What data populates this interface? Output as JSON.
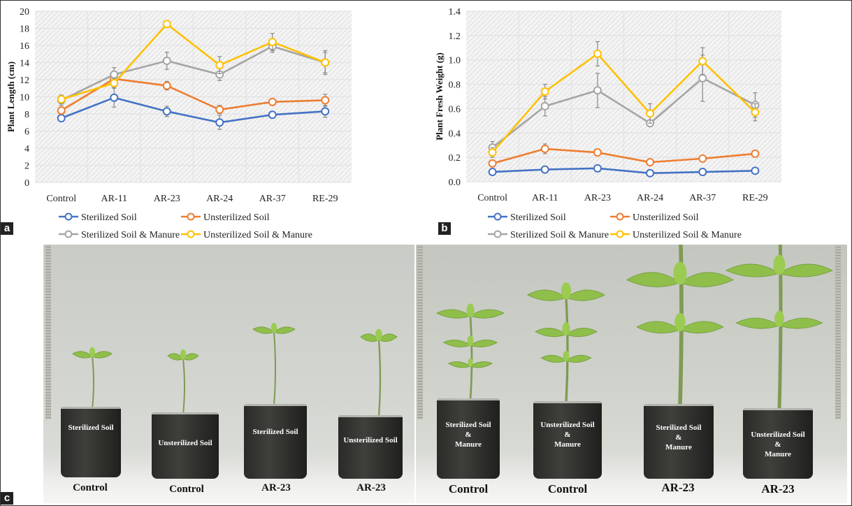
{
  "panel_labels": {
    "a": "a",
    "b": "b",
    "c": "c"
  },
  "chart_data": [
    {
      "type": "line",
      "id": "a",
      "title": "",
      "xlabel": "",
      "ylabel": "Plant Length (cm)",
      "ylim": [
        0,
        20
      ],
      "yticks": [
        "0",
        "2",
        "4",
        "6",
        "8",
        "10",
        "12",
        "14",
        "16",
        "18",
        "20"
      ],
      "ytick_values": [
        0,
        2,
        4,
        6,
        8,
        10,
        12,
        14,
        16,
        18,
        20
      ],
      "categories": [
        "Control",
        "AR-11",
        "AR-23",
        "AR-24",
        "AR-37",
        "RE-29"
      ],
      "grid": true,
      "legend_placement": "bottom",
      "series": [
        {
          "name": "Sterilized Soil",
          "color": "#4472c4",
          "values": [
            7.5,
            9.9,
            8.3,
            7.0,
            7.9,
            8.3
          ],
          "errors": [
            0.3,
            1.1,
            0.6,
            0.8,
            0.3,
            0.7
          ]
        },
        {
          "name": "Unsterilized Soil",
          "color": "#ed7d31",
          "values": [
            8.4,
            12.1,
            11.3,
            8.5,
            9.4,
            9.6
          ],
          "errors": [
            0.4,
            0.3,
            0.5,
            0.5,
            0.4,
            0.7
          ]
        },
        {
          "name": "Sterilized Soil & Manure",
          "color": "#a5a5a5",
          "values": [
            9.6,
            12.6,
            14.2,
            12.6,
            15.9,
            14.0
          ],
          "errors": [
            0.6,
            0.8,
            1.0,
            0.7,
            0.7,
            1.4
          ]
        },
        {
          "name": "Unsterilized Soil & Manure",
          "color": "#ffc000",
          "values": [
            9.7,
            11.6,
            18.5,
            13.7,
            16.4,
            14.0
          ],
          "errors": [
            0.5,
            0.5,
            0.2,
            1.0,
            1.0,
            1.2
          ]
        }
      ]
    },
    {
      "type": "line",
      "id": "b",
      "title": "",
      "xlabel": "",
      "ylabel": "Plant Fresh Weight (g)",
      "ylim": [
        0,
        1.4
      ],
      "yticks": [
        "0.0",
        "0.2",
        "0.4",
        "0.6",
        "0.8",
        "1.0",
        "1.2",
        "1.4"
      ],
      "ytick_values": [
        0,
        0.2,
        0.4,
        0.6,
        0.8,
        1.0,
        1.2,
        1.4
      ],
      "categories": [
        "Control",
        "AR-11",
        "AR-23",
        "AR-24",
        "AR-37",
        "RE-29"
      ],
      "grid": true,
      "legend_placement": "bottom",
      "series": [
        {
          "name": "Sterilized Soil",
          "color": "#4472c4",
          "values": [
            0.08,
            0.1,
            0.11,
            0.07,
            0.08,
            0.09
          ],
          "errors": [
            0.01,
            0.01,
            0.01,
            0.01,
            0.01,
            0.01
          ]
        },
        {
          "name": "Unsterilized Soil",
          "color": "#ed7d31",
          "values": [
            0.15,
            0.27,
            0.24,
            0.16,
            0.19,
            0.23
          ],
          "errors": [
            0.02,
            0.04,
            0.01,
            0.01,
            0.01,
            0.01
          ]
        },
        {
          "name": "Sterilized Soil & Manure",
          "color": "#a5a5a5",
          "values": [
            0.28,
            0.62,
            0.75,
            0.48,
            0.85,
            0.63
          ],
          "errors": [
            0.05,
            0.08,
            0.14,
            0.02,
            0.19,
            0.1
          ]
        },
        {
          "name": "Unsterilized Soil & Manure",
          "color": "#ffc000",
          "values": [
            0.24,
            0.74,
            1.05,
            0.56,
            0.99,
            0.57
          ],
          "errors": [
            0.04,
            0.06,
            0.1,
            0.08,
            0.11,
            0.07
          ]
        }
      ]
    }
  ],
  "photo": {
    "left": {
      "pots": [
        {
          "cup_text": "Sterilized Soil",
          "label": "Control"
        },
        {
          "cup_text": "Unsterilized Soil",
          "label": "Control"
        },
        {
          "cup_text": "Sterilized Soil",
          "label": "AR-23"
        },
        {
          "cup_text": "Unsterilized Soil",
          "label": "AR-23"
        }
      ]
    },
    "right": {
      "pots": [
        {
          "cup_text": [
            "Sterilized Soil",
            "&",
            "Manure"
          ],
          "label": "Control"
        },
        {
          "cup_text": [
            "Unsterilized Soil",
            "&",
            "Manure"
          ],
          "label": "Control"
        },
        {
          "cup_text": [
            "Sterilized Soil",
            "&",
            "Manure"
          ],
          "label": "AR-23"
        },
        {
          "cup_text": [
            "Unsterilized Soil",
            "&",
            "Manure"
          ],
          "label": "AR-23"
        }
      ]
    }
  }
}
